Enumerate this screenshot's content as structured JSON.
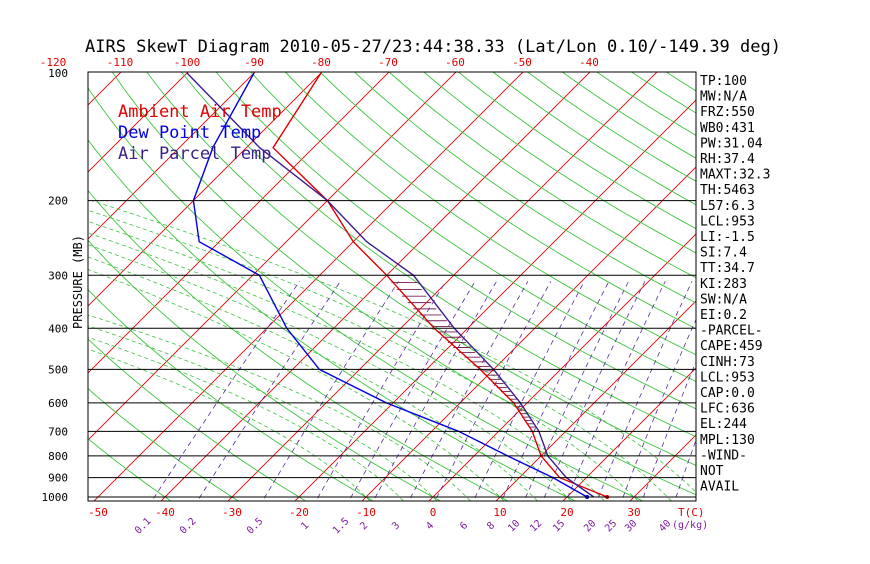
{
  "title": "AIRS SkewT Diagram 2010-05-27/23:44:38.33 (Lat/Lon 0.10/-149.39 deg)",
  "chart_data": {
    "type": "skewt",
    "ylabel": "PRESSURE (MB)",
    "pressure_ticks": [
      100,
      200,
      300,
      400,
      500,
      600,
      700,
      800,
      900,
      1000
    ],
    "top_temp_ticks": [
      -120,
      -110,
      -100,
      -90,
      -80,
      -70,
      -60,
      -50,
      -40
    ],
    "bottom_temp_ticks": [
      -50,
      -40,
      -30,
      -20,
      -10,
      0,
      10,
      20,
      30
    ],
    "bottom_temp_unit": "T(C)",
    "mixing_ratio_ticks": [
      "0.1",
      "0.2",
      "0.5",
      "1",
      "1.5",
      "2",
      "3",
      "4",
      "6",
      "8",
      "10",
      "12",
      "15",
      "20",
      "25",
      "30",
      "40"
    ],
    "mixing_ratio_unit": "(g/kg)",
    "legend": [
      {
        "label": "Ambient Air Temp",
        "color": "#e00000"
      },
      {
        "label": "Dew Point Temp",
        "color": "#0000e0"
      },
      {
        "label": "Air Parcel Temp",
        "color": "#3a1e8c"
      }
    ],
    "series": [
      {
        "name": "Ambient Air Temp",
        "color": "#e00000",
        "points": [
          [
            100,
            -80
          ],
          [
            150,
            -76
          ],
          [
            200,
            -60
          ],
          [
            250,
            -50
          ],
          [
            300,
            -40
          ],
          [
            400,
            -25
          ],
          [
            500,
            -12
          ],
          [
            600,
            -2
          ],
          [
            700,
            5
          ],
          [
            800,
            10
          ],
          [
            900,
            16
          ],
          [
            1000,
            26
          ]
        ]
      },
      {
        "name": "Dew Point Temp",
        "color": "#0000e0",
        "points": [
          [
            100,
            -90
          ],
          [
            150,
            -85
          ],
          [
            200,
            -80
          ],
          [
            250,
            -73
          ],
          [
            300,
            -59
          ],
          [
            400,
            -47
          ],
          [
            500,
            -36
          ],
          [
            600,
            -21
          ],
          [
            700,
            -6
          ],
          [
            800,
            5
          ],
          [
            900,
            15
          ],
          [
            1000,
            23
          ]
        ]
      },
      {
        "name": "Air Parcel Temp",
        "color": "#3a1e8c",
        "points": [
          [
            100,
            -100
          ],
          [
            150,
            -78
          ],
          [
            200,
            -60
          ],
          [
            250,
            -48
          ],
          [
            300,
            -36
          ],
          [
            400,
            -22
          ],
          [
            500,
            -10
          ],
          [
            600,
            -1
          ],
          [
            700,
            6
          ],
          [
            800,
            11
          ],
          [
            900,
            17
          ],
          [
            1000,
            24
          ]
        ]
      }
    ],
    "indices": [
      "TP:100",
      "MW:N/A",
      "FRZ:550",
      "WB0:431",
      "PW:31.04",
      "RH:37.4",
      "MAXT:32.3",
      "TH:5463",
      "L57:6.3",
      "LCL:953",
      "LI:-1.5",
      "SI:7.4",
      "TT:34.7",
      "KI:283",
      "SW:N/A",
      "EI:0.2",
      "-PARCEL-",
      "CAPE:459",
      "CINH:73",
      "LCL:953",
      "CAP:0.0",
      "LFC:636",
      "EL:244",
      "MPL:130",
      "-WIND-",
      "NOT",
      "AVAIL"
    ]
  }
}
